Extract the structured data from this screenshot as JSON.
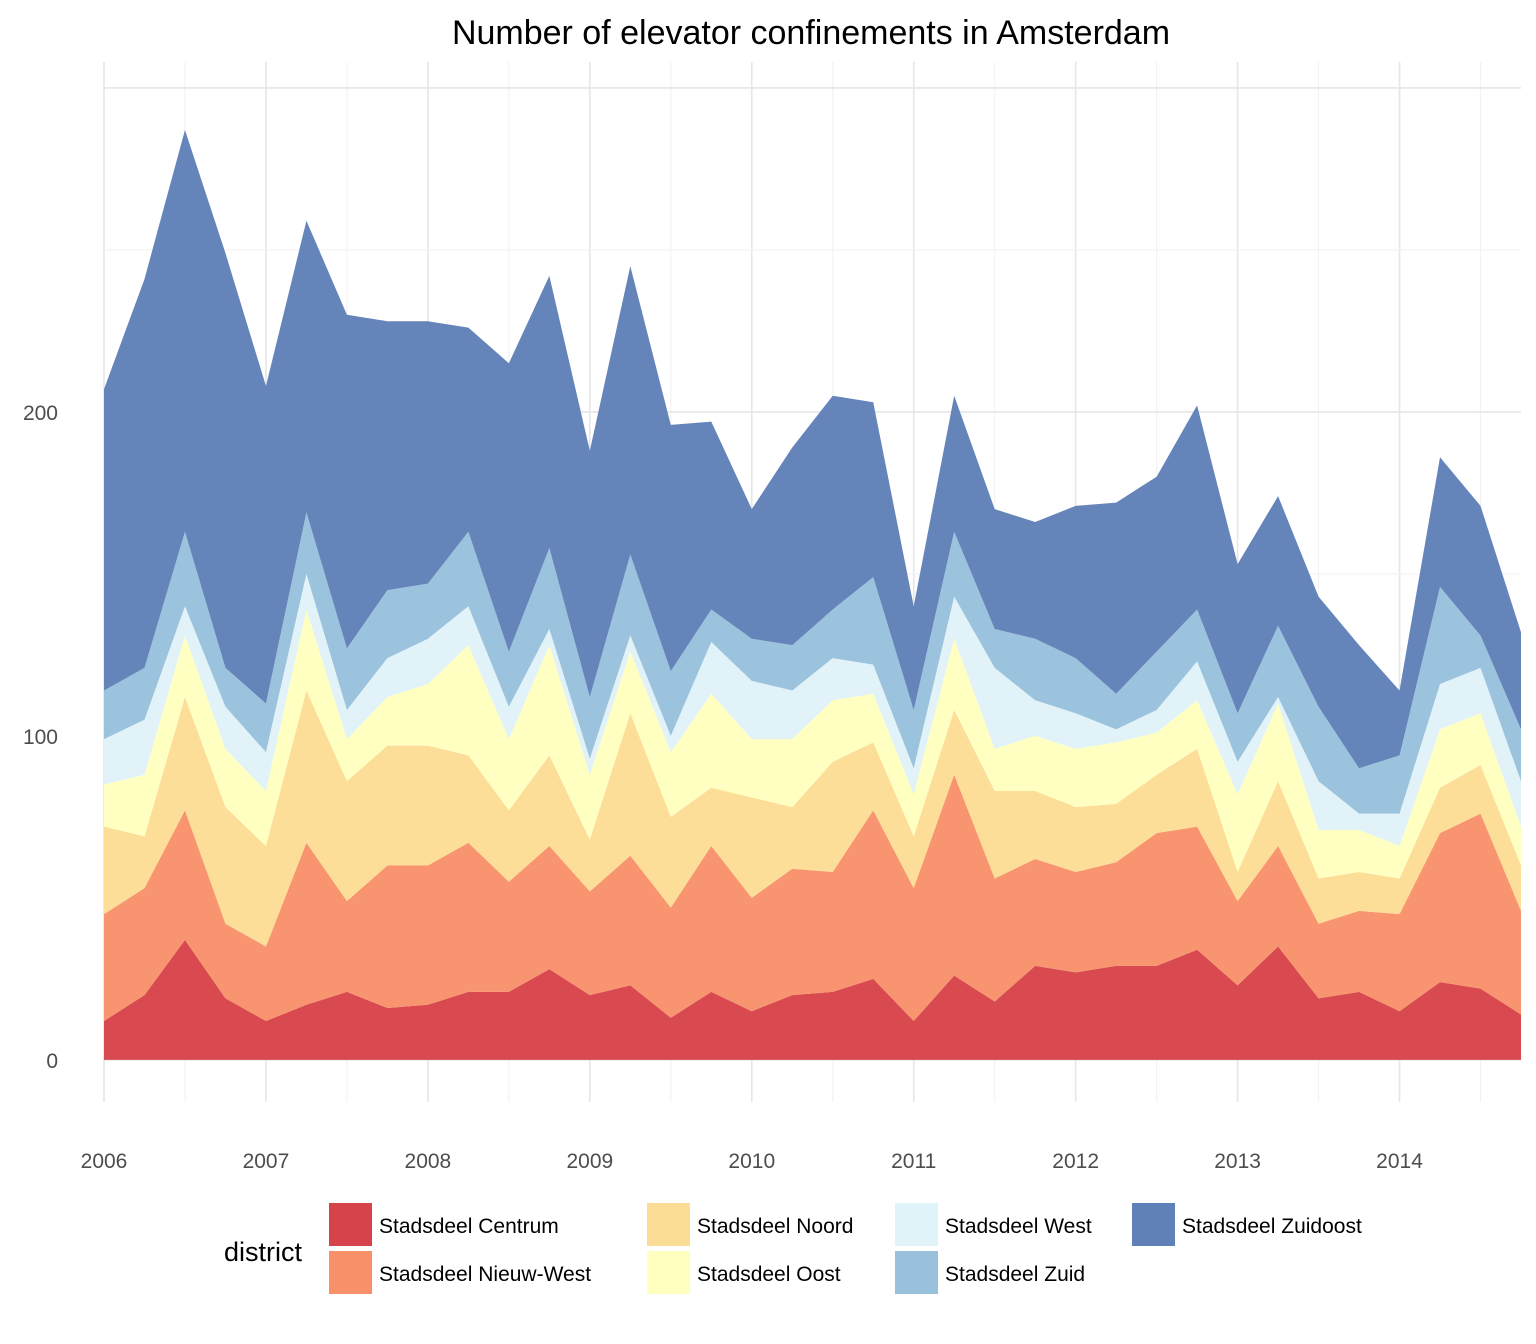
{
  "chart_data": {
    "type": "area",
    "stacked": true,
    "title": "Number of elevator confinements in Amsterdam",
    "xlabel": "",
    "ylabel": "",
    "ylim": [
      -13,
      308
    ],
    "xlim": [
      2006,
      2014.75
    ],
    "grid": true,
    "y_ticks": [
      0,
      100,
      200
    ],
    "x_ticks": [
      2006,
      2007,
      2008,
      2009,
      2010,
      2011,
      2012,
      2013,
      2014
    ],
    "x_tick_labels": [
      "2006",
      "2007",
      "2008",
      "2009",
      "2010",
      "2011",
      "2012",
      "2013",
      "2014"
    ],
    "x": [
      2006,
      2006.25,
      2006.5,
      2006.75,
      2007,
      2007.25,
      2007.5,
      2007.75,
      2008,
      2008.25,
      2008.5,
      2008.75,
      2009,
      2009.25,
      2009.5,
      2009.75,
      2010,
      2010.25,
      2010.5,
      2010.75,
      2011,
      2011.25,
      2011.5,
      2011.75,
      2012,
      2012.25,
      2012.5,
      2012.75,
      2013,
      2013.25,
      2013.5,
      2013.75,
      2014,
      2014.25,
      2014.5,
      2014.75
    ],
    "legend": {
      "title": "district",
      "position": "bottom"
    },
    "series": [
      {
        "name": "Stadsdeel Centrum",
        "color": "#d7434a",
        "values": [
          12,
          20,
          37,
          19,
          12,
          17,
          21,
          16,
          17,
          21,
          21,
          28,
          20,
          23,
          13,
          21,
          15,
          20,
          21,
          25,
          12,
          26,
          18,
          29,
          27,
          29,
          29,
          34,
          23,
          35,
          19,
          21,
          15,
          24,
          22,
          14
        ]
      },
      {
        "name": "Stadsdeel Nieuw-West",
        "color": "#f8916a",
        "values": [
          33,
          33,
          40,
          23,
          23,
          50,
          28,
          44,
          43,
          46,
          34,
          38,
          32,
          40,
          34,
          45,
          35,
          39,
          37,
          52,
          41,
          62,
          38,
          33,
          31,
          32,
          41,
          38,
          26,
          31,
          23,
          25,
          30,
          46,
          54,
          32
        ]
      },
      {
        "name": "Stadsdeel Noord",
        "color": "#fcdd95",
        "values": [
          27,
          16,
          35,
          36,
          31,
          47,
          37,
          37,
          37,
          27,
          22,
          28,
          16,
          44,
          28,
          18,
          31,
          19,
          34,
          21,
          16,
          20,
          27,
          21,
          20,
          18,
          18,
          24,
          9,
          20,
          14,
          12,
          11,
          14,
          15,
          14
        ]
      },
      {
        "name": "Stadsdeel Oost",
        "color": "#ffffbf",
        "values": [
          13,
          19,
          19,
          18,
          17,
          25,
          13,
          15,
          19,
          34,
          22,
          34,
          20,
          19,
          20,
          29,
          18,
          21,
          19,
          15,
          13,
          22,
          13,
          17,
          18,
          19,
          13,
          15,
          24,
          24,
          15,
          13,
          10,
          18,
          16,
          12
        ]
      },
      {
        "name": "Stadsdeel West",
        "color": "#e0f3f8",
        "values": [
          14,
          17,
          9,
          13,
          12,
          11,
          9,
          12,
          14,
          12,
          10,
          5,
          5,
          5,
          5,
          16,
          18,
          15,
          13,
          9,
          8,
          13,
          25,
          11,
          11,
          4,
          7,
          12,
          10,
          2,
          15,
          5,
          10,
          14,
          14,
          14
        ]
      },
      {
        "name": "Stadsdeel Zuid",
        "color": "#99c1dc",
        "values": [
          15,
          16,
          23,
          12,
          15,
          19,
          19,
          21,
          17,
          23,
          17,
          25,
          19,
          25,
          20,
          10,
          13,
          14,
          15,
          27,
          18,
          20,
          12,
          19,
          17,
          11,
          18,
          16,
          15,
          22,
          23,
          14,
          18,
          30,
          10,
          16
        ]
      },
      {
        "name": "Stadsdeel Zuidoost",
        "color": "#6080b8",
        "values": [
          93,
          120,
          124,
          128,
          98,
          90,
          103,
          83,
          81,
          63,
          89,
          84,
          76,
          89,
          76,
          58,
          40,
          61,
          66,
          54,
          32,
          42,
          37,
          36,
          47,
          59,
          54,
          63,
          46,
          40,
          34,
          38,
          20,
          40,
          40,
          30
        ]
      }
    ]
  }
}
